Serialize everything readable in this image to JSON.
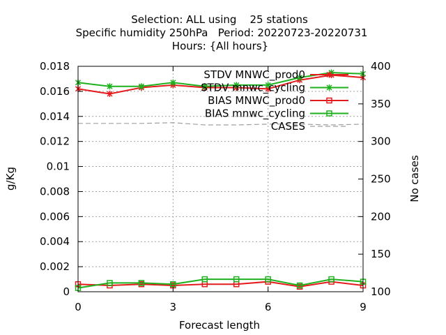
{
  "chart_data": {
    "type": "line",
    "title_lines": [
      "Selection: ALL using    25 stations",
      "Specific humidity 250hPa   Period: 20220723-20220731",
      "Hours: {All hours}"
    ],
    "xlabel": "Forecast length",
    "ylabel": "g/Kg",
    "y2label": "No cases",
    "xlim": [
      0,
      9
    ],
    "ylim": [
      0,
      0.018
    ],
    "y2lim": [
      100,
      400
    ],
    "x_ticks": [
      "0",
      "3",
      "6",
      "9"
    ],
    "y_ticks": [
      "0",
      "0.002",
      "0.004",
      "0.006",
      "0.008",
      "0.01",
      "0.012",
      "0.014",
      "0.016",
      "0.018"
    ],
    "y2_ticks": [
      "100",
      "150",
      "200",
      "250",
      "300",
      "350",
      "400"
    ],
    "grid": true,
    "legend_position": "top-right",
    "x": [
      0,
      1,
      2,
      3,
      4,
      5,
      6,
      7,
      8,
      9
    ],
    "series": [
      {
        "name": "STDV MNWC_prod0",
        "color": "#e41a1c",
        "marker": "x",
        "axis": "left",
        "values": [
          0.0162,
          0.0158,
          0.0163,
          0.0165,
          0.0163,
          0.0163,
          0.0162,
          0.0169,
          0.0173,
          0.0171
        ]
      },
      {
        "name": "STDV mnwc_cycling",
        "color": "#1eb11e",
        "marker": "x",
        "axis": "left",
        "values": [
          0.0167,
          0.0164,
          0.0164,
          0.0167,
          0.0164,
          0.0165,
          0.0165,
          0.0171,
          0.0175,
          0.0174
        ]
      },
      {
        "name": "BIAS MNWC_prod0",
        "color": "#e41a1c",
        "marker": "square",
        "axis": "left",
        "values": [
          0.0006,
          0.0005,
          0.0006,
          0.0005,
          0.0006,
          0.0006,
          0.0008,
          0.0004,
          0.0008,
          0.0005
        ]
      },
      {
        "name": "BIAS mnwc_cycling",
        "color": "#1eb11e",
        "marker": "square",
        "axis": "left",
        "values": [
          0.0003,
          0.0007,
          0.0007,
          0.0006,
          0.001,
          0.001,
          0.001,
          0.0005,
          0.001,
          0.0008
        ]
      },
      {
        "name": "CASES",
        "color": "#a0a0a0",
        "marker": "none",
        "axis": "right",
        "dashed": true,
        "values": [
          324,
          324,
          324,
          325,
          322,
          322,
          323,
          323,
          322,
          323
        ]
      }
    ]
  }
}
